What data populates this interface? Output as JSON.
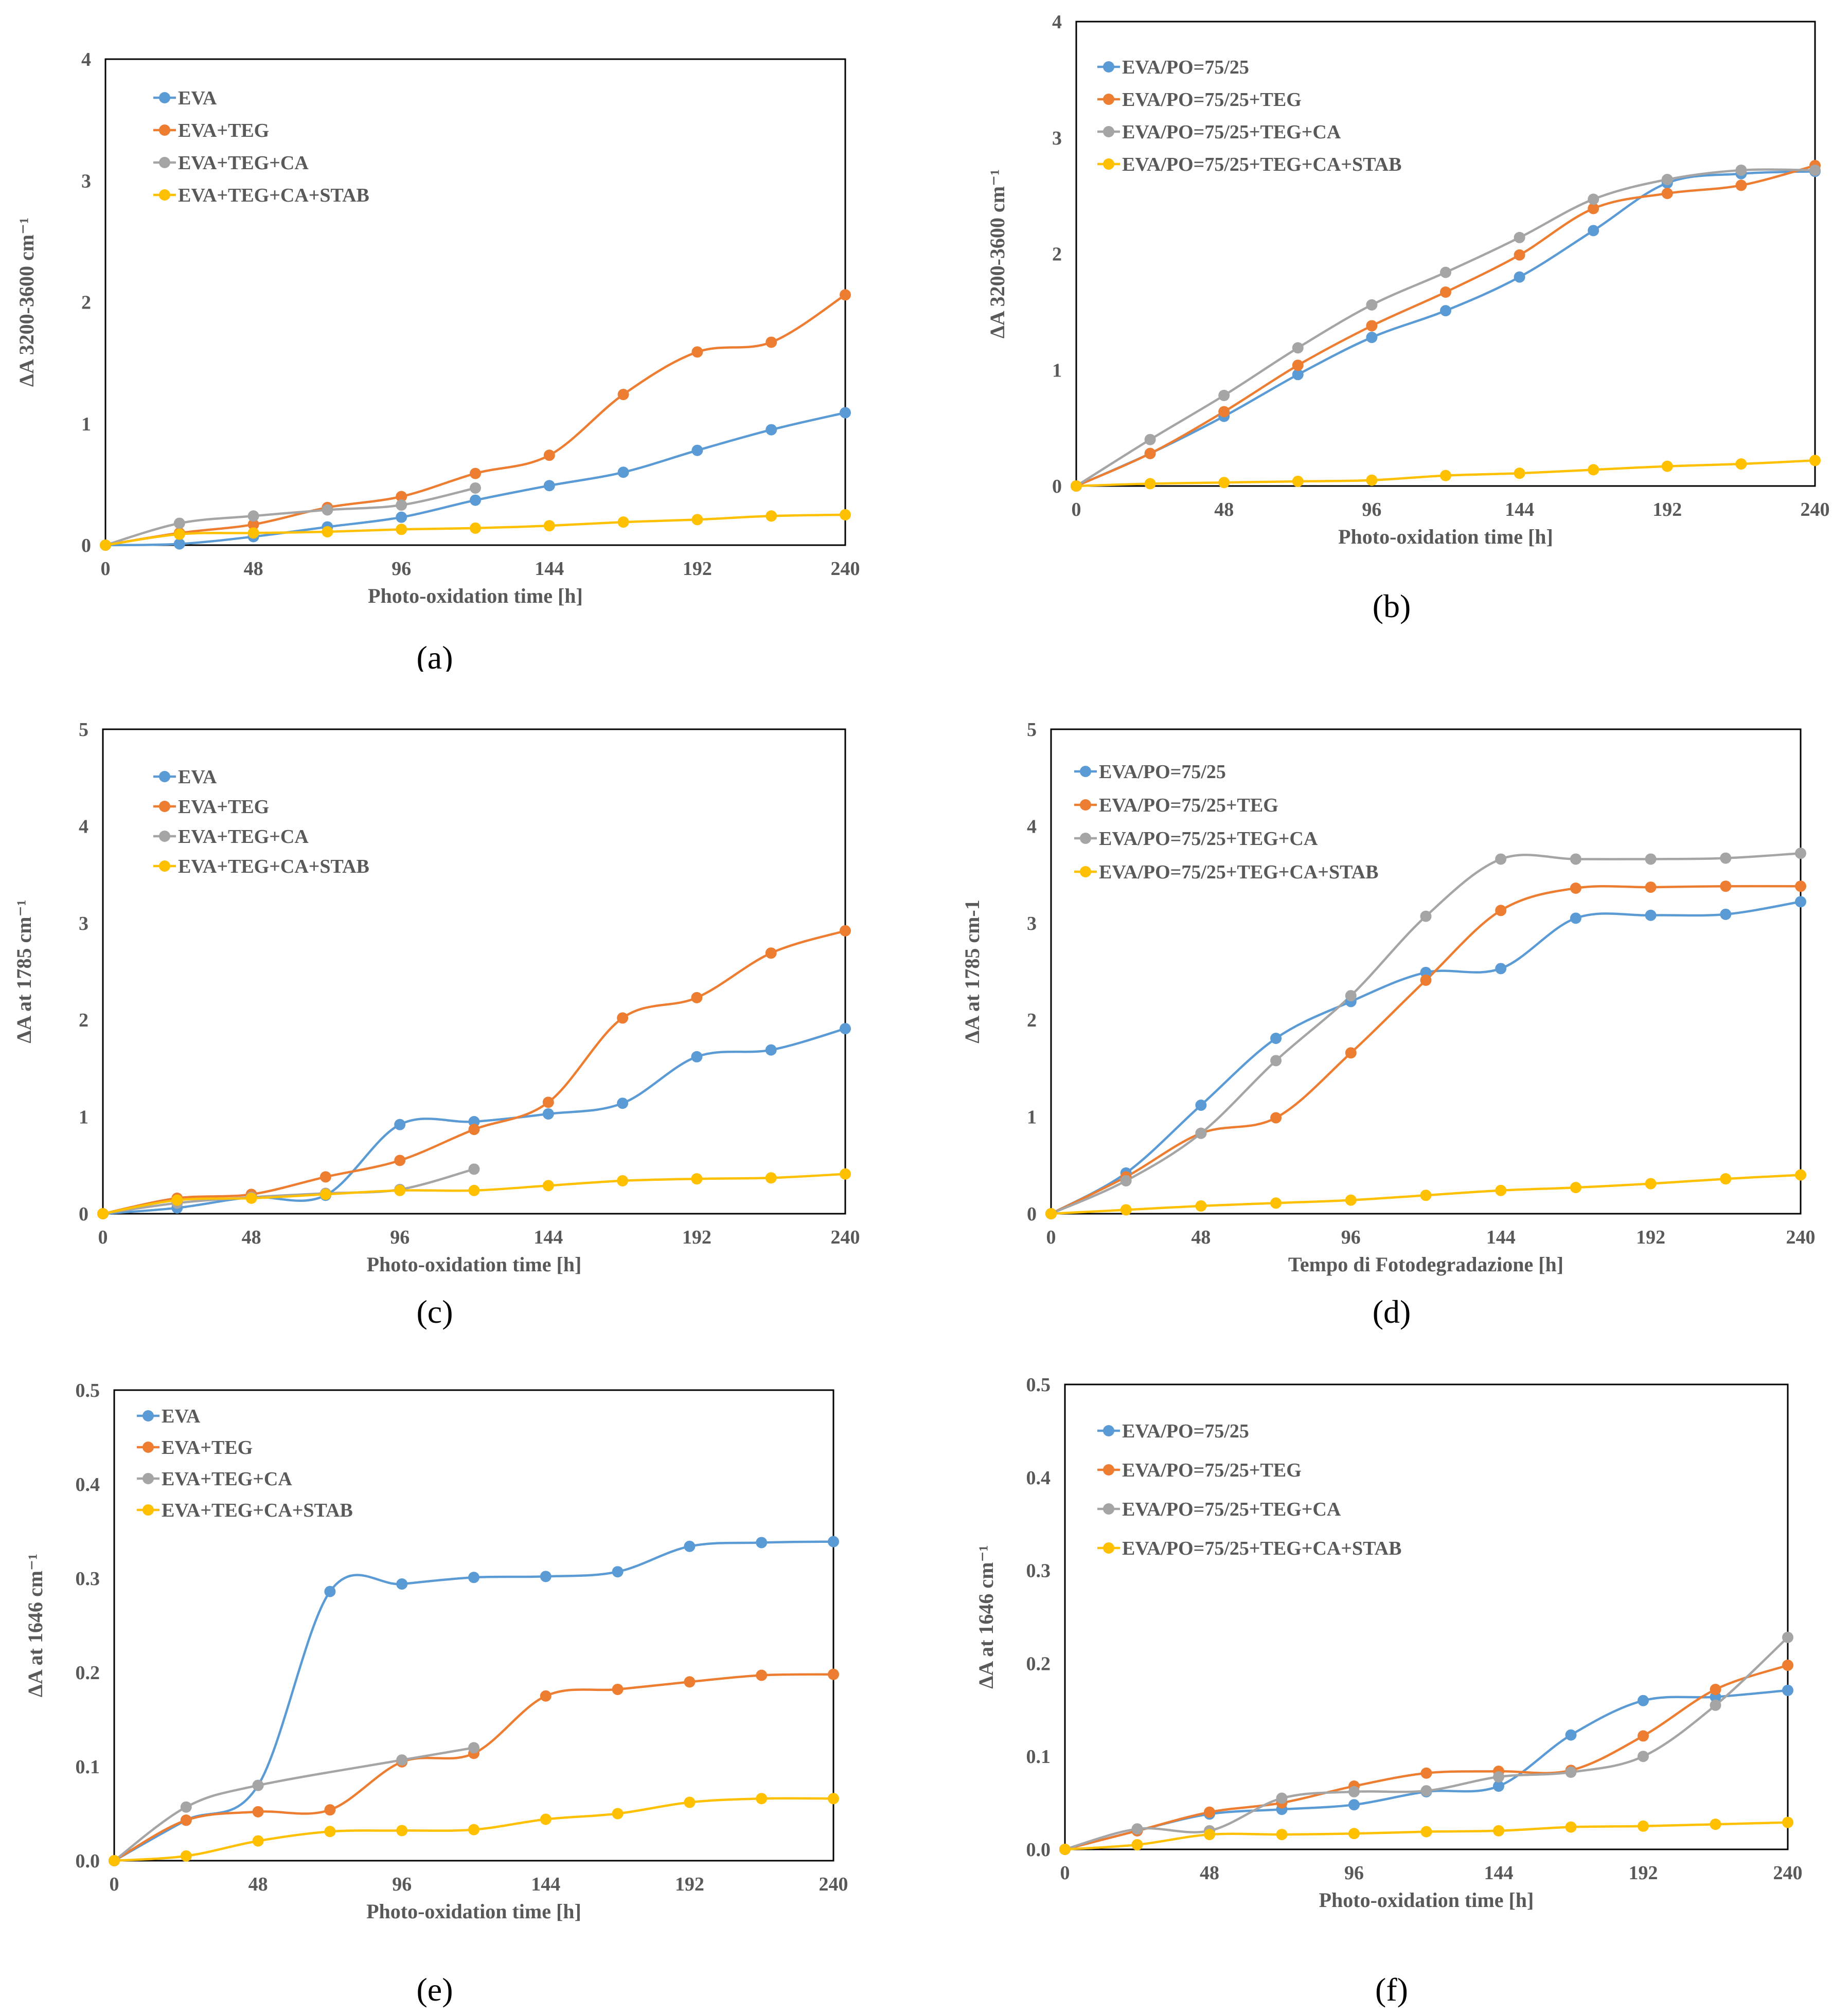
{
  "figure": {
    "panels": [
      "(a)",
      "(b)",
      "(c)",
      "(d)",
      "(e)",
      "(f)"
    ]
  },
  "chart_data": [
    {
      "id": "a",
      "panel_label": "(a)",
      "type": "line",
      "title": "",
      "xlabel": "Photo-oxidation time [h]",
      "ylabel": "ΔA 3200-3600 cm⁻¹",
      "xlim": [
        0,
        240
      ],
      "ylim": [
        0,
        4
      ],
      "xticks": [
        0,
        48,
        96,
        144,
        192,
        240
      ],
      "xtick_labels": [
        "0",
        "48",
        "96",
        "144",
        "192",
        "240"
      ],
      "yticks": [
        0,
        1,
        2,
        3,
        4
      ],
      "ytick_labels": [
        "0",
        "1",
        "2",
        "3",
        "4"
      ],
      "legend_position": "top-left",
      "series": [
        {
          "name": "EVA",
          "color": "#5B9BD5",
          "x": [
            0,
            24,
            48,
            72,
            96,
            120,
            144,
            168,
            192,
            216,
            240
          ],
          "y": [
            0,
            0.01,
            0.07,
            0.15,
            0.23,
            0.37,
            0.49,
            0.6,
            0.78,
            0.95,
            1.09
          ]
        },
        {
          "name": "EVA+TEG",
          "color": "#ED7D31",
          "x": [
            0,
            24,
            48,
            72,
            96,
            120,
            144,
            168,
            192,
            216,
            240
          ],
          "y": [
            0,
            0.1,
            0.17,
            0.31,
            0.4,
            0.59,
            0.74,
            1.24,
            1.59,
            1.67,
            2.06
          ]
        },
        {
          "name": "EVA+TEG+CA",
          "color": "#A5A5A5",
          "x": [
            0,
            24,
            48,
            72,
            96,
            120
          ],
          "y": [
            0,
            0.18,
            0.24,
            0.29,
            0.33,
            0.47
          ]
        },
        {
          "name": "EVA+TEG+CA+STAB",
          "color": "#FFC000",
          "x": [
            0,
            24,
            48,
            72,
            96,
            120,
            144,
            168,
            192,
            216,
            240
          ],
          "y": [
            0,
            0.09,
            0.1,
            0.11,
            0.13,
            0.14,
            0.16,
            0.19,
            0.21,
            0.24,
            0.25
          ]
        }
      ]
    },
    {
      "id": "b",
      "panel_label": "(b)",
      "type": "line",
      "title": "",
      "xlabel": "Photo-oxidation time [h]",
      "ylabel": "ΔA 3200-3600 cm⁻¹",
      "xlim": [
        0,
        240
      ],
      "ylim": [
        0,
        4
      ],
      "xticks": [
        0,
        48,
        96,
        144,
        192,
        240
      ],
      "xtick_labels": [
        "0",
        "48",
        "96",
        "144",
        "192",
        "240"
      ],
      "yticks": [
        0,
        1,
        2,
        3,
        4
      ],
      "ytick_labels": [
        "0",
        "1",
        "2",
        "3",
        "4"
      ],
      "legend_position": "top-left",
      "series": [
        {
          "name": "EVA/PO=75/25",
          "color": "#5B9BD5",
          "x": [
            0,
            24,
            48,
            72,
            96,
            120,
            144,
            168,
            192,
            216,
            240
          ],
          "y": [
            0,
            0.28,
            0.6,
            0.96,
            1.28,
            1.51,
            1.8,
            2.2,
            2.61,
            2.69,
            2.71
          ]
        },
        {
          "name": "EVA/PO=75/25+TEG",
          "color": "#ED7D31",
          "x": [
            0,
            24,
            48,
            72,
            96,
            120,
            144,
            168,
            192,
            216,
            240
          ],
          "y": [
            0,
            0.28,
            0.64,
            1.04,
            1.38,
            1.67,
            1.99,
            2.39,
            2.52,
            2.59,
            2.76
          ]
        },
        {
          "name": "EVA/PO=75/25+TEG+CA",
          "color": "#A5A5A5",
          "x": [
            0,
            24,
            48,
            72,
            96,
            120,
            144,
            168,
            192,
            216,
            240
          ],
          "y": [
            0,
            0.4,
            0.78,
            1.19,
            1.56,
            1.84,
            2.14,
            2.47,
            2.64,
            2.72,
            2.72
          ]
        },
        {
          "name": "EVA/PO=75/25+TEG+CA+STAB",
          "color": "#FFC000",
          "x": [
            0,
            24,
            48,
            72,
            96,
            120,
            144,
            168,
            192,
            216,
            240
          ],
          "y": [
            0,
            0.02,
            0.03,
            0.04,
            0.05,
            0.09,
            0.11,
            0.14,
            0.17,
            0.19,
            0.22
          ]
        }
      ]
    },
    {
      "id": "c",
      "panel_label": "(c)",
      "type": "line",
      "title": "",
      "xlabel": "Photo-oxidation time [h]",
      "ylabel": "ΔA at 1785 cm⁻¹",
      "xlim": [
        0,
        240
      ],
      "ylim": [
        0,
        5
      ],
      "xticks": [
        0,
        48,
        96,
        144,
        192,
        240
      ],
      "xtick_labels": [
        "0",
        "48",
        "96",
        "144",
        "192",
        "240"
      ],
      "yticks": [
        0,
        1,
        2,
        3,
        4,
        5
      ],
      "ytick_labels": [
        "0",
        "1",
        "2",
        "3",
        "4",
        "5"
      ],
      "legend_position": "top-left",
      "series": [
        {
          "name": "EVA",
          "color": "#5B9BD5",
          "x": [
            0,
            24,
            48,
            72,
            96,
            120,
            144,
            168,
            192,
            216,
            240
          ],
          "y": [
            0,
            0.06,
            0.17,
            0.19,
            0.92,
            0.95,
            1.03,
            1.14,
            1.62,
            1.69,
            1.91
          ]
        },
        {
          "name": "EVA+TEG",
          "color": "#ED7D31",
          "x": [
            0,
            24,
            48,
            72,
            96,
            120,
            144,
            168,
            192,
            216,
            240
          ],
          "y": [
            0,
            0.16,
            0.2,
            0.38,
            0.55,
            0.87,
            1.15,
            2.02,
            2.23,
            2.69,
            2.92
          ]
        },
        {
          "name": "EVA+TEG+CA",
          "color": "#A5A5A5",
          "x": [
            0,
            24,
            48,
            72,
            96,
            120
          ],
          "y": [
            0,
            0.11,
            0.17,
            0.21,
            0.25,
            0.46
          ]
        },
        {
          "name": "EVA+TEG+CA+STAB",
          "color": "#FFC000",
          "x": [
            0,
            24,
            48,
            72,
            96,
            120,
            144,
            168,
            192,
            216,
            240
          ],
          "y": [
            0,
            0.14,
            0.16,
            0.2,
            0.24,
            0.24,
            0.29,
            0.34,
            0.36,
            0.37,
            0.41
          ]
        }
      ]
    },
    {
      "id": "d",
      "panel_label": "(d)",
      "type": "line",
      "title": "",
      "xlabel": "Tempo di Fotodegradazione [h]",
      "ylabel": "ΔA at 1785 cm-1",
      "xlim": [
        0,
        240
      ],
      "ylim": [
        0,
        5
      ],
      "xticks": [
        0,
        48,
        96,
        144,
        192,
        240
      ],
      "xtick_labels": [
        "0",
        "48",
        "96",
        "144",
        "192",
        "240"
      ],
      "yticks": [
        0,
        1,
        2,
        3,
        4,
        5
      ],
      "ytick_labels": [
        "0",
        "1",
        "2",
        "3",
        "4",
        "5"
      ],
      "legend_position": "top-left",
      "series": [
        {
          "name": "EVA/PO=75/25",
          "color": "#5B9BD5",
          "x": [
            0,
            24,
            48,
            72,
            96,
            120,
            144,
            168,
            192,
            216,
            240
          ],
          "y": [
            0,
            0.42,
            1.12,
            1.81,
            2.19,
            2.49,
            2.53,
            3.05,
            3.08,
            3.09,
            3.22
          ]
        },
        {
          "name": "EVA/PO=75/25+TEG",
          "color": "#ED7D31",
          "x": [
            0,
            24,
            48,
            72,
            96,
            120,
            144,
            168,
            192,
            216,
            240
          ],
          "y": [
            0,
            0.38,
            0.83,
            0.99,
            1.66,
            2.41,
            3.13,
            3.36,
            3.37,
            3.38,
            3.38
          ]
        },
        {
          "name": "EVA/PO=75/25+TEG+CA",
          "color": "#A5A5A5",
          "x": [
            0,
            24,
            48,
            72,
            96,
            120,
            144,
            168,
            192,
            216,
            240
          ],
          "y": [
            0,
            0.34,
            0.83,
            1.58,
            2.25,
            3.07,
            3.66,
            3.66,
            3.66,
            3.67,
            3.72
          ]
        },
        {
          "name": "EVA/PO=75/25+TEG+CA+STAB",
          "color": "#FFC000",
          "x": [
            0,
            24,
            48,
            72,
            96,
            120,
            144,
            168,
            192,
            216,
            240
          ],
          "y": [
            0,
            0.04,
            0.08,
            0.11,
            0.14,
            0.19,
            0.24,
            0.27,
            0.31,
            0.36,
            0.4
          ]
        }
      ]
    },
    {
      "id": "e",
      "panel_label": "(e)",
      "type": "line",
      "title": "",
      "xlabel": "Photo-oxidation time [h]",
      "ylabel": "ΔA at 1646 cm⁻¹",
      "xlim": [
        0,
        240
      ],
      "ylim": [
        0,
        0.5
      ],
      "xticks": [
        0,
        48,
        96,
        144,
        192,
        240
      ],
      "xtick_labels": [
        "0",
        "48",
        "96",
        "144",
        "192",
        "240"
      ],
      "yticks": [
        0,
        0.1,
        0.2,
        0.3,
        0.4,
        0.5
      ],
      "ytick_labels": [
        "0.0",
        "0.1",
        "0.2",
        "0.3",
        "0.4",
        "0.5"
      ],
      "legend_position": "top-left",
      "series": [
        {
          "name": "EVA",
          "color": "#5B9BD5",
          "x": [
            0,
            24,
            48,
            72,
            96,
            120,
            144,
            168,
            192,
            216,
            240
          ],
          "y": [
            0,
            0.043,
            0.08,
            0.286,
            0.294,
            0.301,
            0.302,
            0.307,
            0.334,
            0.338,
            0.339
          ]
        },
        {
          "name": "EVA+TEG",
          "color": "#ED7D31",
          "x": [
            0,
            24,
            48,
            72,
            96,
            120,
            144,
            168,
            192,
            216,
            240
          ],
          "y": [
            0,
            0.043,
            0.052,
            0.054,
            0.105,
            0.114,
            0.175,
            0.182,
            0.19,
            0.197,
            0.198
          ]
        },
        {
          "name": "EVA+TEG+CA",
          "color": "#A5A5A5",
          "x": [
            0,
            24,
            48,
            96,
            120
          ],
          "y": [
            0,
            0.057,
            0.08,
            0.107,
            0.12
          ]
        },
        {
          "name": "EVA+TEG+CA+STAB",
          "color": "#FFC000",
          "x": [
            0,
            24,
            48,
            72,
            96,
            120,
            144,
            168,
            192,
            216,
            240
          ],
          "y": [
            0,
            0.005,
            0.021,
            0.031,
            0.032,
            0.033,
            0.044,
            0.05,
            0.062,
            0.066,
            0.066
          ]
        }
      ]
    },
    {
      "id": "f",
      "panel_label": "(f)",
      "type": "line",
      "title": "",
      "xlabel": "Photo-oxidation time [h]",
      "ylabel": "ΔA at 1646 cm⁻¹",
      "xlim": [
        0,
        240
      ],
      "ylim": [
        0,
        0.5
      ],
      "xticks": [
        0,
        48,
        96,
        144,
        192,
        240
      ],
      "xtick_labels": [
        "0",
        "48",
        "96",
        "144",
        "192",
        "240"
      ],
      "yticks": [
        0,
        0.1,
        0.2,
        0.3,
        0.4,
        0.5
      ],
      "ytick_labels": [
        "0.0",
        "0.1",
        "0.2",
        "0.3",
        "0.4",
        "0.5"
      ],
      "legend_position": "top-left",
      "series": [
        {
          "name": "EVA/PO=75/25",
          "color": "#5B9BD5",
          "x": [
            0,
            24,
            48,
            72,
            96,
            120,
            144,
            168,
            192,
            216,
            240
          ],
          "y": [
            0,
            0.02,
            0.038,
            0.043,
            0.048,
            0.062,
            0.068,
            0.123,
            0.16,
            0.164,
            0.171
          ]
        },
        {
          "name": "EVA/PO=75/25+TEG",
          "color": "#ED7D31",
          "x": [
            0,
            24,
            48,
            72,
            96,
            120,
            144,
            168,
            192,
            216,
            240
          ],
          "y": [
            0,
            0.02,
            0.04,
            0.05,
            0.068,
            0.082,
            0.084,
            0.085,
            0.122,
            0.172,
            0.198
          ]
        },
        {
          "name": "EVA/PO=75/25+TEG+CA",
          "color": "#A5A5A5",
          "x": [
            0,
            24,
            48,
            72,
            96,
            120,
            144,
            168,
            192,
            216,
            240
          ],
          "y": [
            0,
            0.022,
            0.02,
            0.055,
            0.062,
            0.063,
            0.078,
            0.083,
            0.1,
            0.155,
            0.228
          ]
        },
        {
          "name": "EVA/PO=75/25+TEG+CA+STAB",
          "color": "#FFC000",
          "x": [
            0,
            24,
            48,
            72,
            96,
            120,
            144,
            168,
            192,
            216,
            240
          ],
          "y": [
            0,
            0.005,
            0.016,
            0.016,
            0.017,
            0.019,
            0.02,
            0.024,
            0.025,
            0.027,
            0.029
          ]
        }
      ]
    }
  ]
}
